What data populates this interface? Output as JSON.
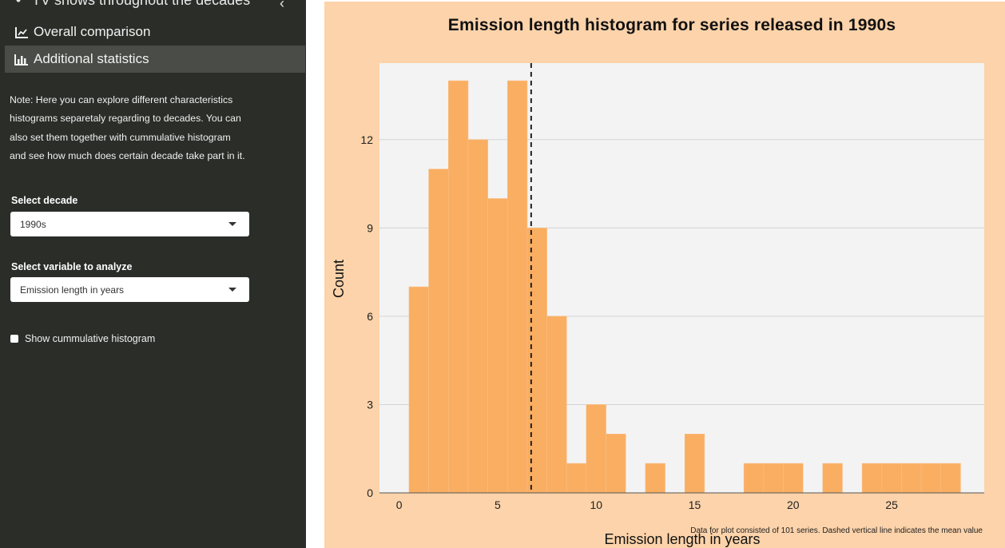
{
  "sidebar": {
    "app_title": "TV shows throughout the decades",
    "menu": [
      {
        "label": "Overall comparison",
        "icon": "line-chart-icon",
        "active": false
      },
      {
        "label": "Additional statistics",
        "icon": "bar-chart-icon",
        "active": true
      }
    ],
    "note": "Note: Here you can explore different characteristics histograms separetaly regarding to decades. You can also set them together with cummulative histogram and see how much does certain decade take part in it.",
    "decade_label": "Select decade",
    "decade_value": "1990s",
    "variable_label": "Select variable to analyze",
    "variable_value": "Emission length in years",
    "cumulative_label": "Show cummulative histogram",
    "cumulative_checked": false
  },
  "colors": {
    "sidebar_bg": "#2b2d29",
    "panel_bg": "#fcd3aa",
    "plot_bg": "#f3f3f3",
    "bar": "#f9ae62"
  },
  "chart_data": {
    "type": "bar",
    "title": "Emission length histogram for series released in 1990s",
    "xlabel": "Emission length in years",
    "ylabel": "Count",
    "caption": "Data for plot consisted of 101 series. Dashed vertical line indicates the mean value",
    "bin_width": 1,
    "bin_starts": [
      0.5,
      1.5,
      2.5,
      3.5,
      4.5,
      5.5,
      6.5,
      7.5,
      8.5,
      9.5,
      10.5,
      11.5,
      12.5,
      13.5,
      14.5,
      15.5,
      16.5,
      17.5,
      18.5,
      19.5,
      20.5,
      21.5,
      22.5,
      23.5,
      24.5,
      25.5,
      26.5,
      27.5
    ],
    "counts": [
      7,
      11,
      14,
      12,
      10,
      14,
      9,
      6,
      1,
      3,
      2,
      0,
      1,
      0,
      2,
      0,
      0,
      1,
      1,
      1,
      0,
      1,
      0,
      1,
      1,
      1,
      1,
      1
    ],
    "mean": 6.7,
    "xlim": [
      -1,
      29.7
    ],
    "ylim": [
      0,
      14.6
    ],
    "xticks": [
      0,
      5,
      10,
      15,
      20,
      25
    ],
    "yticks": [
      0,
      3,
      6,
      9,
      12
    ],
    "grid": true
  }
}
